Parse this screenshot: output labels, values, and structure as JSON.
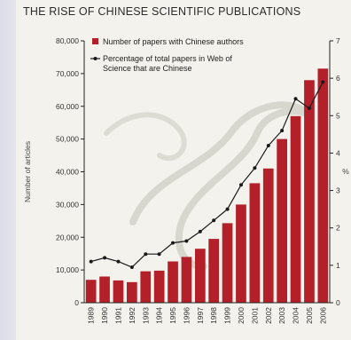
{
  "chart_data": {
    "type": "bar",
    "title": "THE RISE OF CHINESE SCIENTIFIC PUBLICATIONS",
    "categories": [
      "1989",
      "1990",
      "1991",
      "1992",
      "1993",
      "1994",
      "1995",
      "1996",
      "1997",
      "1998",
      "1999",
      "2000",
      "2001",
      "2002",
      "2003",
      "2004",
      "2005",
      "2006"
    ],
    "series": [
      {
        "name": "Number of papers with Chinese authors",
        "kind": "bar",
        "axis": "left",
        "color": "#b3202a",
        "values": [
          7000,
          8000,
          6800,
          6300,
          9600,
          9800,
          12600,
          14000,
          16500,
          19500,
          24300,
          30000,
          36500,
          41000,
          50000,
          57000,
          68000,
          71500
        ]
      },
      {
        "name": "Percentage of total papers in Web of Science that are Chinese",
        "kind": "line",
        "axis": "right",
        "color": "#1a1a1a",
        "values": [
          1.1,
          1.2,
          1.1,
          0.95,
          1.3,
          1.3,
          1.6,
          1.65,
          1.9,
          2.2,
          2.5,
          3.15,
          3.6,
          4.2,
          4.6,
          5.45,
          5.2,
          5.9
        ]
      }
    ],
    "ylabel": "Number of articles",
    "ylim": [
      0,
      80000
    ],
    "yticks": [
      "0",
      "10,000",
      "20,000",
      "30,000",
      "40,000",
      "50,000",
      "60,000",
      "70,000",
      "80,000"
    ],
    "y2label": "%",
    "y2lim": [
      0,
      7
    ],
    "y2ticks": [
      "0",
      "1",
      "2",
      "3",
      "4",
      "5",
      "6",
      "7"
    ],
    "legend": "top-left",
    "grid": false
  }
}
